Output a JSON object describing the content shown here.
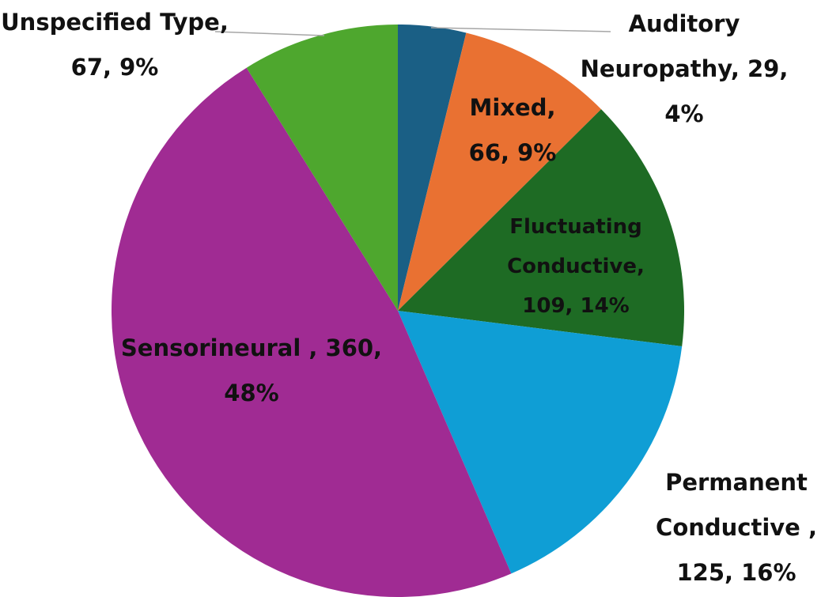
{
  "chart_data": {
    "type": "pie",
    "categories": [
      "Auditory Neuropathy",
      "Mixed",
      "Fluctuating Conductive",
      "Permanent Conductive ",
      "Sensorineural ",
      "Unspecified Type"
    ],
    "values": [
      29,
      66,
      109,
      125,
      360,
      67
    ],
    "value_labels": [
      "Auditory Neuropathy, 29, 4%",
      "Mixed, 66, 9%",
      "Fluctuating Conductive, 109, 14%",
      "Permanent Conductive , 125, 16%",
      "Sensorineural , 360, 48%",
      "Unspecified Type, 67, 9%"
    ],
    "colors": [
      "#1a5f85",
      "#e97132",
      "#1e6b24",
      "#0f9ed5",
      "#a02b93",
      "#4ea72e"
    ]
  }
}
